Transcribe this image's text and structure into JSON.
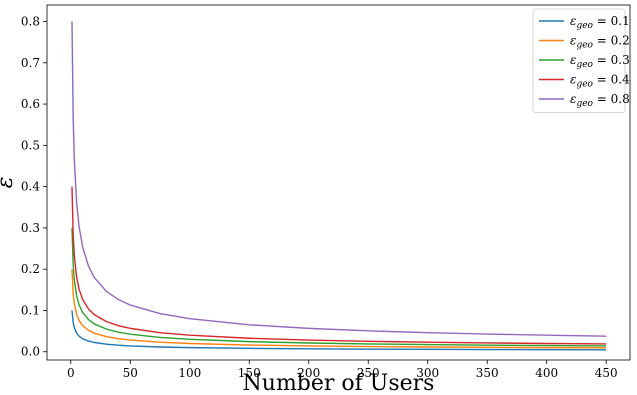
{
  "chart_data": {
    "type": "line",
    "xlabel": "Number of Users",
    "ylabel": "ε",
    "xlim": [
      -20,
      470
    ],
    "ylim": [
      -0.02,
      0.84
    ],
    "xticks": [
      0,
      50,
      100,
      150,
      200,
      250,
      300,
      350,
      400,
      450
    ],
    "yticks": [
      0.0,
      0.1,
      0.2,
      0.3,
      0.4,
      0.5,
      0.6,
      0.7,
      0.8
    ],
    "xtick_labels": [
      "0",
      "50",
      "100",
      "150",
      "200",
      "250",
      "300",
      "350",
      "400",
      "450"
    ],
    "ytick_labels": [
      "0.0",
      "0.1",
      "0.2",
      "0.3",
      "0.4",
      "0.5",
      "0.6",
      "0.7",
      "0.8"
    ],
    "x": [
      1,
      2,
      3,
      5,
      7,
      10,
      15,
      20,
      30,
      40,
      50,
      75,
      100,
      150,
      200,
      250,
      300,
      350,
      400,
      450
    ],
    "legend_position": "top-right",
    "grid": false,
    "series": [
      {
        "name": "εgeo = 0.1",
        "legend_main": "ε",
        "legend_sub": "geo",
        "legend_rest": " = 0.1",
        "color": "#1f77b4",
        "values": [
          0.1,
          0.0707,
          0.0577,
          0.0447,
          0.0378,
          0.0316,
          0.0258,
          0.0224,
          0.0183,
          0.0158,
          0.0141,
          0.0115,
          0.01,
          0.0082,
          0.0071,
          0.0063,
          0.0058,
          0.0053,
          0.005,
          0.0047
        ]
      },
      {
        "name": "εgeo = 0.2",
        "legend_main": "ε",
        "legend_sub": "geo",
        "legend_rest": " = 0.2",
        "color": "#ff7f0e",
        "values": [
          0.2,
          0.1414,
          0.1155,
          0.0894,
          0.0756,
          0.0632,
          0.0516,
          0.0447,
          0.0365,
          0.0316,
          0.0283,
          0.0231,
          0.02,
          0.0163,
          0.0141,
          0.0126,
          0.0115,
          0.0107,
          0.01,
          0.0094
        ]
      },
      {
        "name": "εgeo = 0.3",
        "legend_main": "ε",
        "legend_sub": "geo",
        "legend_rest": " = 0.3",
        "color": "#2ca02c",
        "values": [
          0.3,
          0.2121,
          0.1732,
          0.1342,
          0.1134,
          0.0949,
          0.0775,
          0.0671,
          0.0548,
          0.0474,
          0.0424,
          0.0346,
          0.03,
          0.0245,
          0.0212,
          0.019,
          0.0173,
          0.016,
          0.015,
          0.0141
        ]
      },
      {
        "name": "εgeo = 0.4",
        "legend_main": "ε",
        "legend_sub": "geo",
        "legend_rest": " = 0.4",
        "color": "#d62728",
        "values": [
          0.4,
          0.2828,
          0.2309,
          0.1789,
          0.1512,
          0.1265,
          0.1033,
          0.0894,
          0.073,
          0.0632,
          0.0566,
          0.0462,
          0.04,
          0.0327,
          0.0283,
          0.0253,
          0.0231,
          0.0214,
          0.02,
          0.0189
        ]
      },
      {
        "name": "εgeo = 0.8",
        "legend_main": "ε",
        "legend_sub": "geo",
        "legend_rest": " = 0.8",
        "color": "#9467bd",
        "values": [
          0.8,
          0.5657,
          0.4619,
          0.3578,
          0.3024,
          0.253,
          0.2066,
          0.1789,
          0.1461,
          0.1265,
          0.1131,
          0.0924,
          0.08,
          0.0653,
          0.0566,
          0.0506,
          0.0462,
          0.0428,
          0.04,
          0.0377
        ]
      }
    ]
  }
}
